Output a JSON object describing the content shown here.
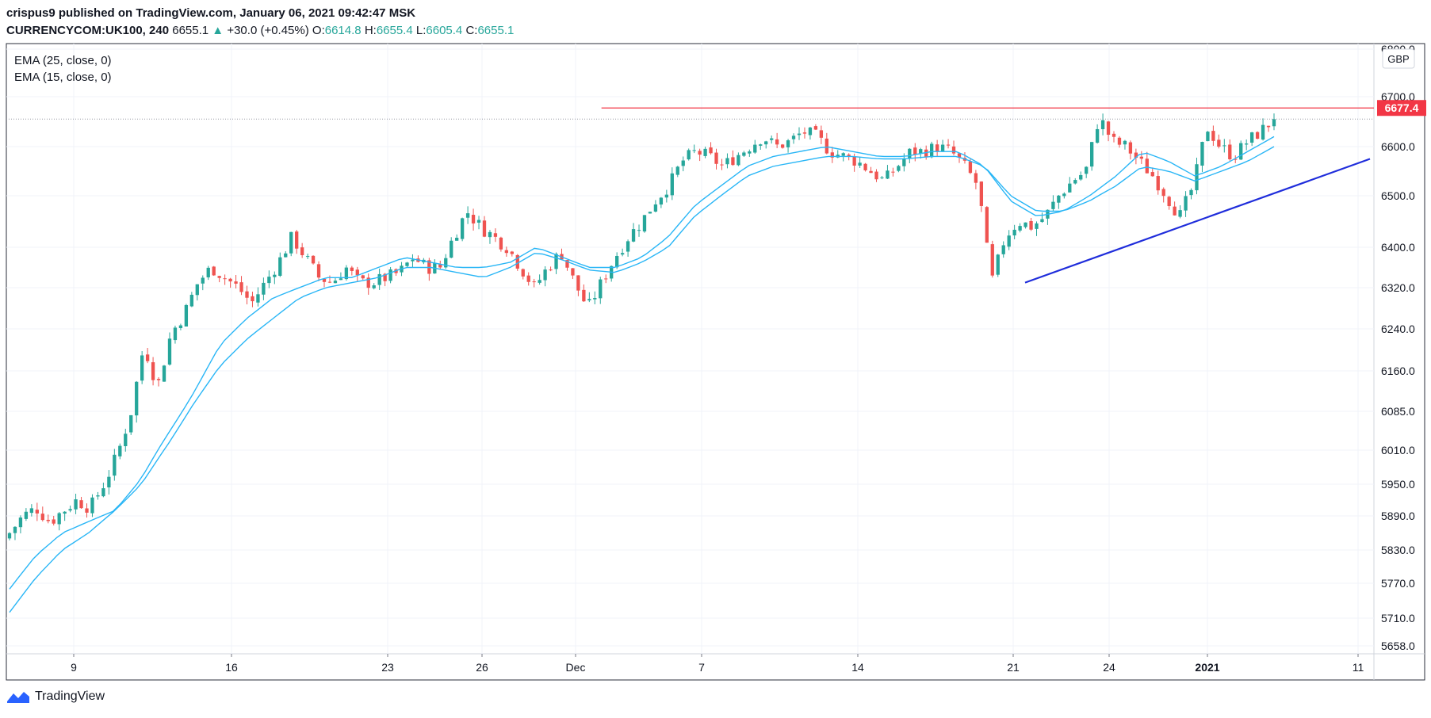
{
  "header": {
    "line1": "crispus9 published on TradingView.com, January 06, 2021 09:42:47 MSK",
    "symbol": "CURRENCYCOM:UK100, 240",
    "last": "6655.1",
    "change_arrow": "▲",
    "change": "+30.0 (+0.45%)",
    "o_label": "O:",
    "o_val": "6614.8",
    "h_label": "H:",
    "h_val": "6655.4",
    "l_label": "L:",
    "l_val": "6605.4",
    "c_label": "C:",
    "c_val": "6655.1"
  },
  "legend": [
    "EMA (25, close, 0)",
    "EMA (15, close, 0)"
  ],
  "currency": "GBP",
  "price_tag": "6677.4",
  "footer": {
    "brand": "TradingView"
  },
  "colors": {
    "up": "#26a69a",
    "down": "#ef5350",
    "ema": "#29b6f6",
    "resistance": "#f23645",
    "support": "#1f2ddb"
  },
  "chart_data": {
    "type": "candlestick",
    "title": "",
    "y_ticks": [
      5658,
      5710,
      5770,
      5830,
      5890,
      5950,
      6010,
      6085,
      6160,
      6240,
      6320,
      6400,
      6500,
      6600,
      6700,
      6800
    ],
    "y_tick_labels": [
      "5658.0",
      "5710.0",
      "5770.0",
      "5830.0",
      "5890.0",
      "5950.0",
      "6010.0",
      "6085.0",
      "6160.0",
      "6240.0",
      "6320.0",
      "6400.0",
      "6500.0",
      "6600.0",
      "6700.0",
      "6800.0"
    ],
    "x_tick_labels": [
      "9",
      "16",
      "23",
      "26",
      "Dec",
      "7",
      "14",
      "21",
      "24",
      "2021",
      "11"
    ],
    "x_tick_bold": [
      false,
      false,
      false,
      false,
      false,
      false,
      false,
      false,
      false,
      true,
      false
    ],
    "close_anchors": [
      5860,
      5890,
      5905,
      5880,
      5900,
      5920,
      5905,
      5950,
      6000,
      6080,
      6210,
      6130,
      6230,
      6270,
      6330,
      6360,
      6340,
      6320,
      6290,
      6330,
      6370,
      6420,
      6380,
      6340,
      6330,
      6360,
      6330,
      6330,
      6340,
      6350,
      6380,
      6360,
      6360,
      6420,
      6470,
      6440,
      6420,
      6400,
      6360,
      6320,
      6360,
      6390,
      6330,
      6280,
      6330,
      6380,
      6420,
      6450,
      6490,
      6520,
      6570,
      6590,
      6580,
      6560,
      6580,
      6600,
      6620,
      6600,
      6610,
      6630,
      6620,
      6590,
      6580,
      6570,
      6550,
      6530,
      6560,
      6590,
      6590,
      6600,
      6590,
      6560,
      6520,
      6330,
      6420,
      6450,
      6440,
      6460,
      6500,
      6530,
      6550,
      6660,
      6610,
      6600,
      6570,
      6540,
      6500,
      6460,
      6520,
      6640,
      6600,
      6580,
      6610,
      6630,
      6655
    ],
    "ema15_anchors": [
      5760,
      5820,
      5860,
      5880,
      5900,
      5960,
      6040,
      6120,
      6210,
      6260,
      6300,
      6320,
      6340,
      6340,
      6360,
      6380,
      6370,
      6360,
      6360,
      6370,
      6400,
      6380,
      6360,
      6360,
      6380,
      6420,
      6480,
      6520,
      6560,
      6580,
      6590,
      6600,
      6590,
      6580,
      6580,
      6590,
      6590,
      6560,
      6490,
      6460,
      6470,
      6500,
      6540,
      6590,
      6570,
      6540,
      6560,
      6590,
      6620
    ],
    "ema25_anchors": [
      5720,
      5780,
      5830,
      5860,
      5900,
      5950,
      6020,
      6100,
      6170,
      6220,
      6260,
      6300,
      6320,
      6330,
      6340,
      6360,
      6360,
      6350,
      6340,
      6360,
      6390,
      6375,
      6355,
      6350,
      6370,
      6400,
      6460,
      6500,
      6540,
      6560,
      6570,
      6580,
      6580,
      6575,
      6575,
      6580,
      6580,
      6560,
      6500,
      6470,
      6470,
      6490,
      6520,
      6560,
      6550,
      6530,
      6550,
      6570,
      6600
    ],
    "resistance": {
      "price": 6677.4,
      "start_date": "Dec 5",
      "label": "6677.4"
    },
    "support": {
      "from_price": 6330,
      "from_date": "Dec 21",
      "to_price": 6575,
      "to_date": "Jan 11"
    },
    "last_price": 6655.1
  }
}
